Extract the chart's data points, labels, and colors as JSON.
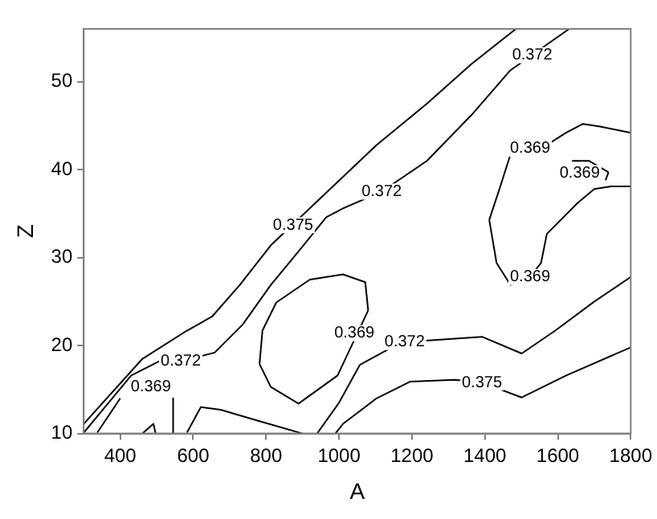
{
  "chart_data": {
    "type": "line",
    "xlabel": "A",
    "ylabel": "Z",
    "xlim": [
      300,
      1800
    ],
    "xticks": [
      400,
      600,
      800,
      1000,
      1200,
      1400,
      1600,
      1800
    ],
    "ylim": [
      10,
      56
    ],
    "yticks": [
      10,
      20,
      30,
      40,
      50
    ],
    "grid": false,
    "legend": false,
    "marker": "none",
    "line_style": "solid",
    "series": [
      {
        "color": "#000000",
        "x": [
          300,
          461,
          583,
          652,
          728,
          813,
          935,
          1103,
          1241,
          1363,
          1485
        ],
        "values": [
          11.1,
          18.5,
          21.7,
          23.3,
          26.9,
          31.4,
          36.2,
          42.8,
          47.5,
          52,
          56
        ]
      },
      {
        "color": "#000000",
        "x": [
          300,
          430,
          506,
          566,
          659,
          736,
          813,
          889,
          965,
          1011,
          1117,
          1241,
          1363,
          1470,
          1631
        ],
        "values": [
          10.1,
          16.6,
          18.2,
          18.2,
          19.2,
          22.4,
          26.9,
          30.7,
          34.6,
          35.6,
          37.5,
          41,
          46.2,
          51.3,
          56
        ]
      },
      {
        "color": "#000000",
        "x": [
          337,
          400,
          461,
          529,
          545,
          545
        ],
        "values": [
          10.1,
          14,
          null,
          null,
          14,
          10
        ]
      },
      {
        "color": "#000000",
        "x": [
          461,
          491,
          497
        ],
        "values": [
          10,
          11.1,
          10
        ]
      },
      {
        "color": "#000000",
        "x": [
          583,
          621,
          675,
          782,
          900
        ],
        "values": [
          10.1,
          13,
          12.7,
          11.4,
          10
        ]
      },
      {
        "color": "#000000",
        "x": [
          940,
          1000,
          1057,
          1163,
          1180,
          1392,
          1501,
          1593,
          1700,
          1800
        ],
        "values": [
          10,
          13.5,
          17.8,
          20.2,
          20.4,
          21,
          19.1,
          21.7,
          25,
          27.8
        ]
      },
      {
        "color": "#000000",
        "x": [
          990,
          1011,
          1103,
          1195,
          1317,
          1392,
          1501,
          1623,
          1800
        ],
        "values": [
          10,
          11.1,
          14,
          15.9,
          16.1,
          15.8,
          14.1,
          16.6,
          19.8
        ]
      },
      {
        "color": "#000000",
        "x": [
          782,
          790,
          828,
          920,
          1011,
          1072,
          1080
        ],
        "values": [
          17.9,
          21.7,
          24.9,
          27.5,
          28.1,
          27.2,
          24
        ]
      },
      {
        "color": "#000000",
        "x": [
          782,
          813,
          889,
          996,
          1080
        ],
        "values": [
          17.9,
          15.3,
          13.4,
          16.6,
          24
        ]
      },
      {
        "color": "#000000",
        "x": [
          1412,
          1440,
          1470,
          1524,
          1577,
          1623,
          1669,
          1716,
          1800
        ],
        "values": [
          34.3,
          37.8,
          41.7,
          42.4,
          43,
          44.2,
          45.2,
          44.9,
          44.2
        ]
      },
      {
        "color": "#000000",
        "x": [
          1412,
          1432,
          1470,
          1524,
          1554,
          1570,
          1654,
          1700,
          1746,
          1800
        ],
        "values": [
          34.3,
          29.4,
          26.9,
          27.8,
          29.4,
          32.7,
          36.2,
          37.8,
          38.1,
          38.1
        ]
      },
      {
        "color": "#000000",
        "x": [
          1639,
          1685,
          1739
        ],
        "values": [
          41,
          41,
          39.7
        ]
      },
      {
        "color": "#000000",
        "x": [
          1731,
          1739
        ],
        "values": [
          38.8,
          39.7
        ]
      }
    ],
    "annotations": [
      {
        "text": "0.375",
        "x": 874,
        "y": 33.7
      },
      {
        "text": "0.372",
        "x": 1117,
        "y": 37.5
      },
      {
        "text": "0.372",
        "x": 1530,
        "y": 53
      },
      {
        "text": "0.372",
        "x": 566,
        "y": 18.2
      },
      {
        "text": "0.369",
        "x": 484,
        "y": 15.3
      },
      {
        "text": "0.369",
        "x": 1042,
        "y": 21.4
      },
      {
        "text": "0.372",
        "x": 1180,
        "y": 20.4
      },
      {
        "text": "0.375",
        "x": 1392,
        "y": 15.8
      },
      {
        "text": "0.369",
        "x": 1524,
        "y": 42.4
      },
      {
        "text": "0.369",
        "x": 1660,
        "y": 39.6
      },
      {
        "text": "0.369",
        "x": 1524,
        "y": 27.8
      }
    ]
  }
}
